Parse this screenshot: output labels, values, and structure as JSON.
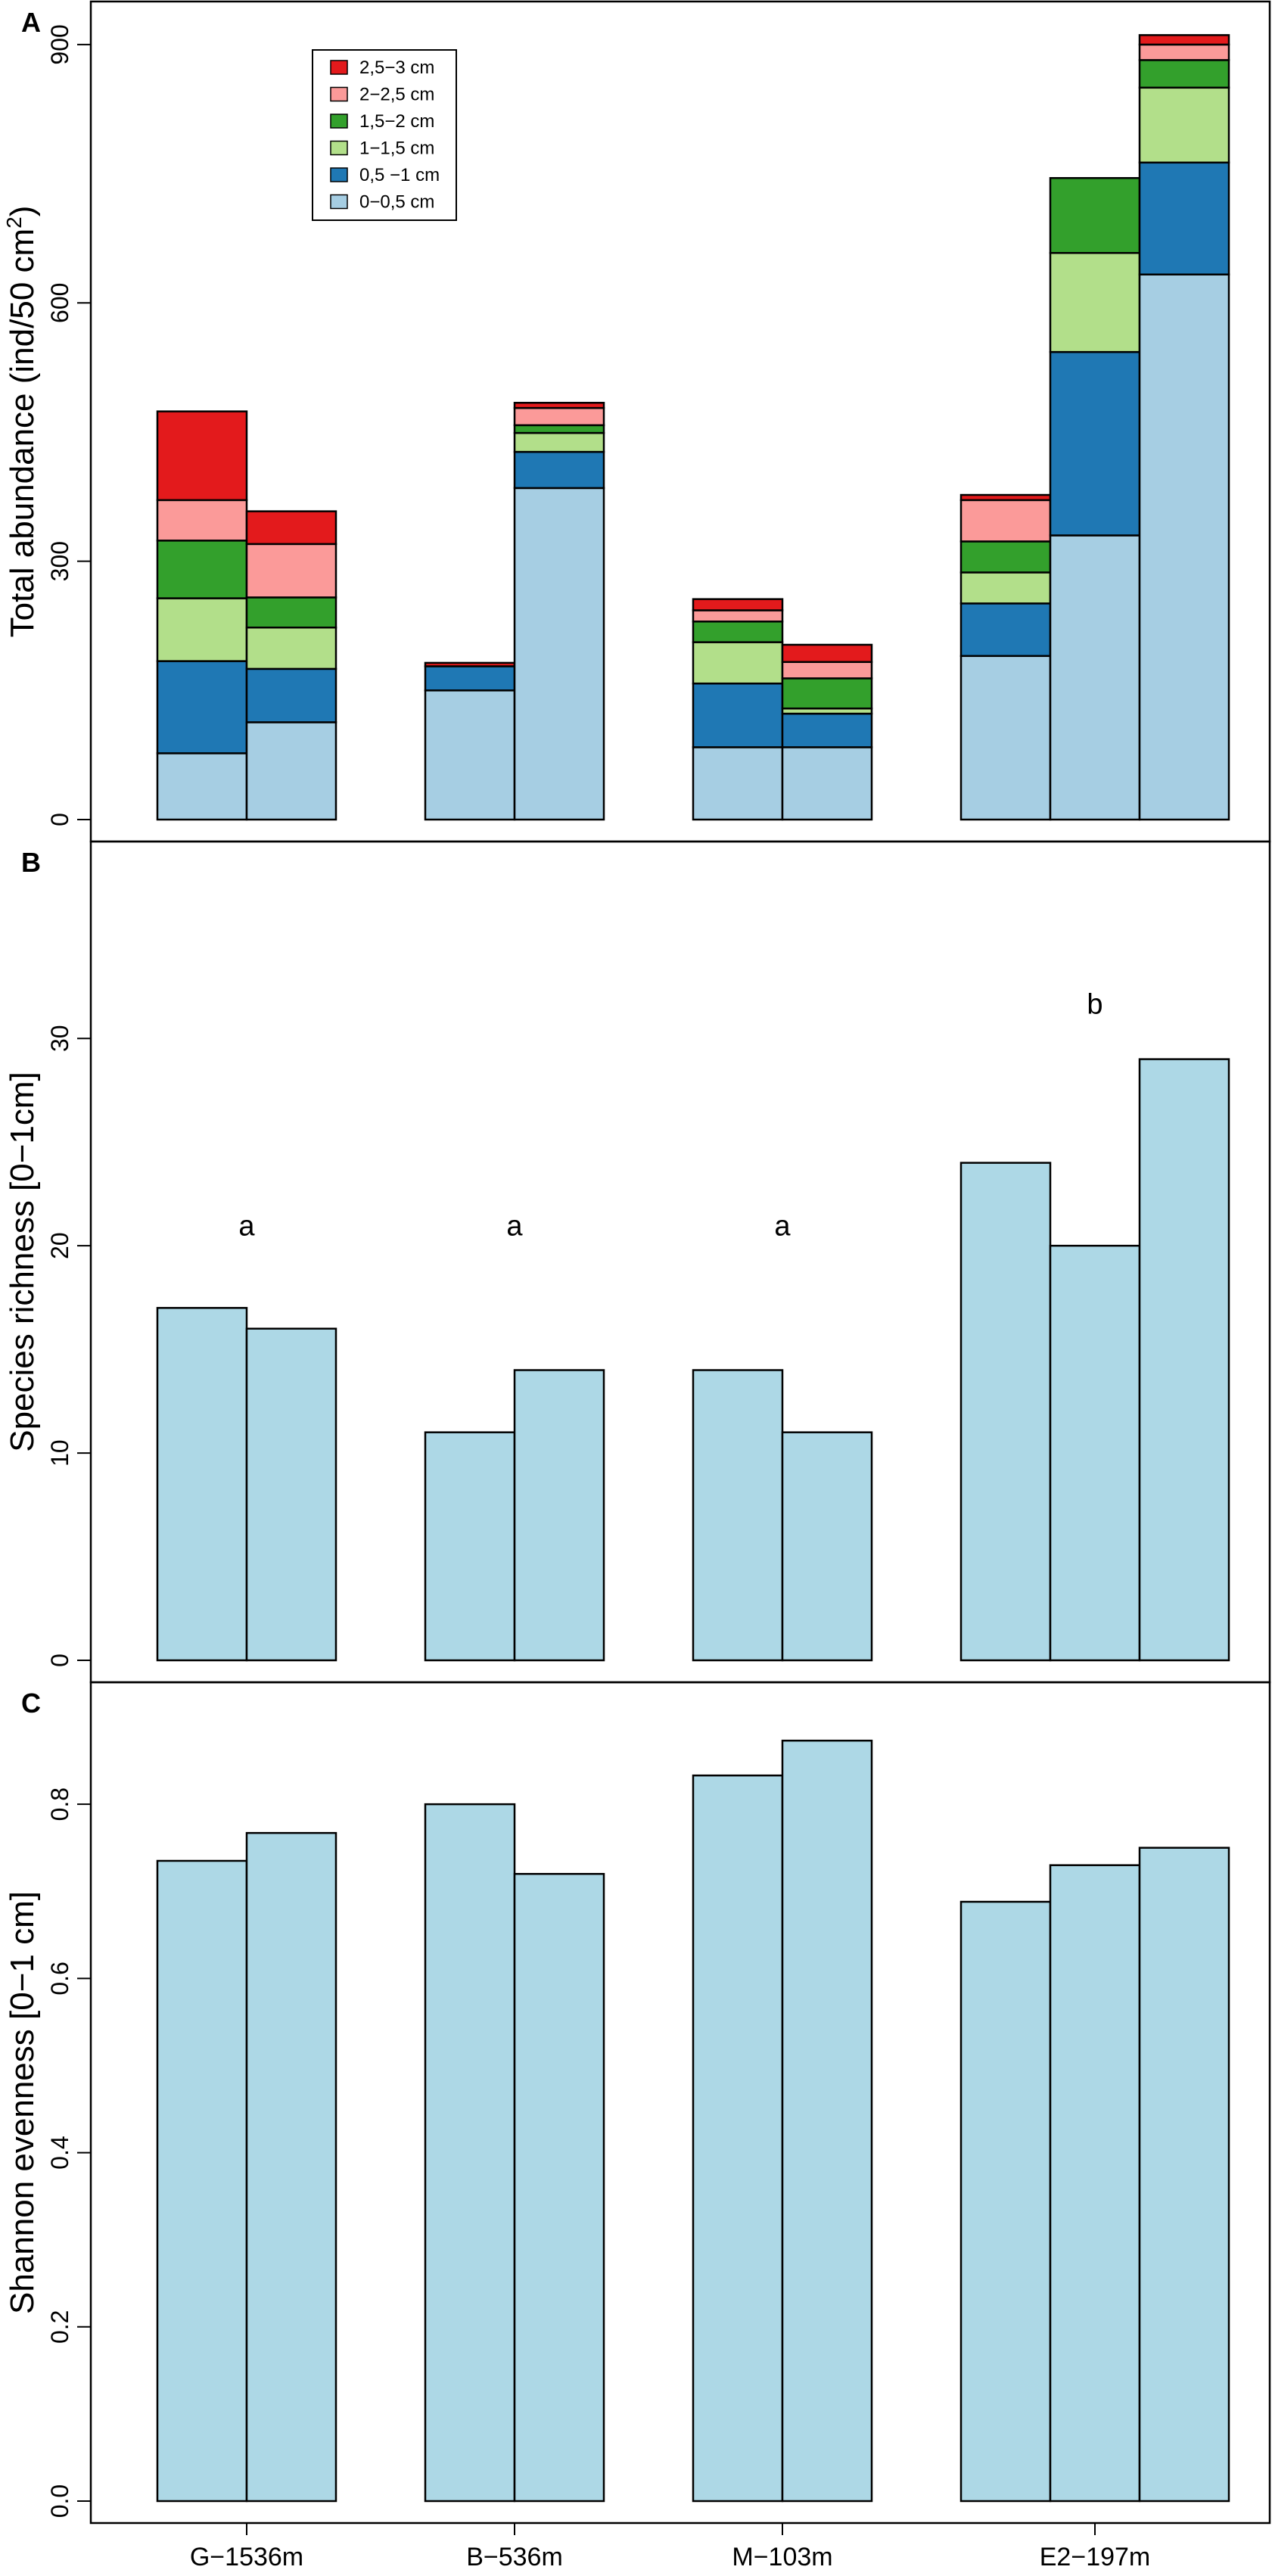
{
  "colors": {
    "0-0,5": "#a6cee3",
    "0,5-1": "#1f78b4",
    "1-1,5": "#b2df8a",
    "1,5-2": "#33a02c",
    "2-2,5": "#fb9a99",
    "2,5-3": "#e31a1c",
    "single": "#add8e6",
    "stroke": "#000000"
  },
  "groups": [
    "G−1536m",
    "B−536m",
    "M−103m",
    "E2−197m"
  ],
  "chart_data": [
    {
      "panel": "A",
      "type": "bar",
      "stacked": true,
      "ylabel": "Total abundance (ind/50 cm",
      "ylabel_sup": "2",
      "ylabel_tail": ")",
      "ylim": [
        0,
        950
      ],
      "yticks": [
        0,
        300,
        600,
        900
      ],
      "bars_per_group": [
        2,
        2,
        2,
        3
      ],
      "legend": [
        {
          "key": "2,5-3",
          "label": "2,5−3 cm"
        },
        {
          "key": "2-2,5",
          "label": "2−2,5 cm"
        },
        {
          "key": "1,5-2",
          "label": "1,5−2 cm"
        },
        {
          "key": "1-1,5",
          "label": "1−1,5 cm"
        },
        {
          "key": "0,5-1",
          "label": "0,5 −1 cm"
        },
        {
          "key": "0-0,5",
          "label": "0−0,5 cm"
        }
      ],
      "series_order": [
        "0-0,5",
        "0,5-1",
        "1-1,5",
        "1,5-2",
        "2-2,5",
        "2,5-3"
      ],
      "bars": [
        {
          "group": 0,
          "values": [
            77,
            107,
            73,
            67,
            47,
            103
          ]
        },
        {
          "group": 0,
          "values": [
            113,
            62,
            48,
            35,
            62,
            38
          ]
        },
        {
          "group": 1,
          "values": [
            150,
            28,
            0,
            0,
            0,
            4
          ]
        },
        {
          "group": 1,
          "values": [
            385,
            42,
            22,
            9,
            20,
            6
          ]
        },
        {
          "group": 2,
          "values": [
            84,
            74,
            48,
            24,
            13,
            13
          ]
        },
        {
          "group": 2,
          "values": [
            84,
            39,
            6,
            35,
            19,
            20
          ]
        },
        {
          "group": 3,
          "values": [
            190,
            61,
            36,
            36,
            48,
            6
          ]
        },
        {
          "group": 3,
          "values": [
            330,
            213,
            115,
            87,
            0,
            0
          ]
        },
        {
          "group": 3,
          "values": [
            633,
            130,
            87,
            32,
            18,
            11
          ]
        }
      ]
    },
    {
      "panel": "B",
      "type": "bar",
      "ylabel": "Species richness [0−1cm]",
      "ylim": [
        0,
        39.5
      ],
      "yticks": [
        0,
        10,
        20,
        30
      ],
      "bars_per_group": [
        2,
        2,
        2,
        3
      ],
      "values": [
        17,
        16,
        11,
        14,
        14,
        11,
        24,
        20,
        29
      ],
      "significance": [
        {
          "group": 0,
          "letter": "a",
          "y": 20.5
        },
        {
          "group": 1,
          "letter": "a",
          "y": 20.5
        },
        {
          "group": 2,
          "letter": "a",
          "y": 20.5
        },
        {
          "group": 3,
          "letter": "b",
          "y": 31.2
        }
      ]
    },
    {
      "panel": "C",
      "type": "bar",
      "ylabel": "Shannon evenness [0−1 cm]",
      "ylim": [
        0,
        0.94
      ],
      "yticks": [
        0.0,
        0.2,
        0.4,
        0.6,
        0.8
      ],
      "ytick_labels": [
        "0.0",
        "0.2",
        "0.4",
        "0.6",
        "0.8"
      ],
      "bars_per_group": [
        2,
        2,
        2,
        3
      ],
      "values": [
        0.735,
        0.767,
        0.8,
        0.72,
        0.833,
        0.873,
        0.688,
        0.73,
        0.75
      ],
      "xlabels_from": "groups"
    }
  ]
}
